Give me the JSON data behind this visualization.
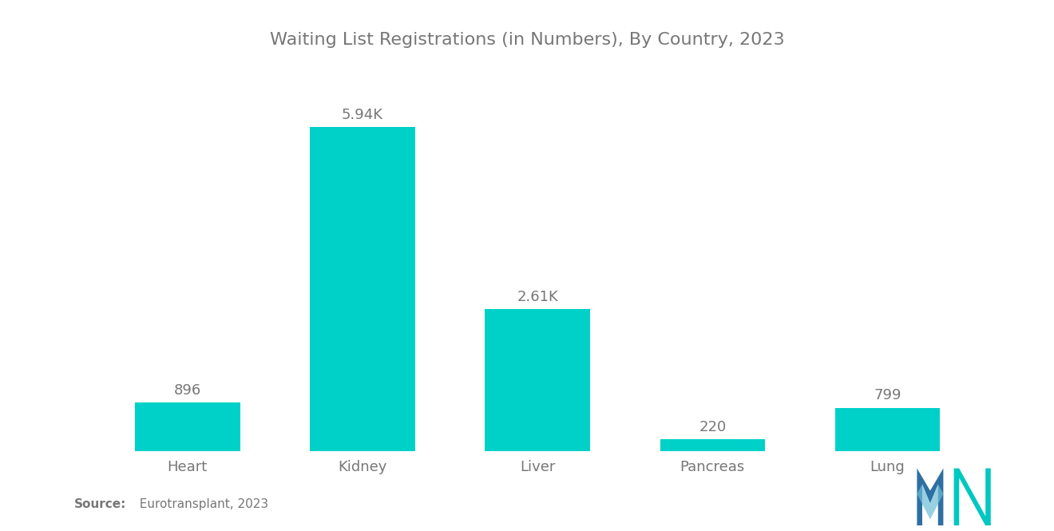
{
  "title": "Waiting List Registrations (in Numbers), By Country, 2023",
  "categories": [
    "Heart",
    "Kidney",
    "Liver",
    "Pancreas",
    "Lung"
  ],
  "values": [
    896,
    5940,
    2610,
    220,
    799
  ],
  "labels": [
    "896",
    "5.94K",
    "2.61K",
    "220",
    "799"
  ],
  "bar_color": "#00D1C8",
  "background_color": "#ffffff",
  "title_color": "#777777",
  "label_color": "#777777",
  "tick_color": "#777777",
  "source_bold": "Source:",
  "source_rest": "  Eurotransplant, 2023",
  "ylim": [
    0,
    7000
  ],
  "title_fontsize": 16,
  "label_fontsize": 13,
  "tick_fontsize": 13,
  "source_fontsize": 11,
  "bar_width": 0.6,
  "logo_m_color": "#2D6FA3",
  "logo_n_color": "#00C8C0"
}
